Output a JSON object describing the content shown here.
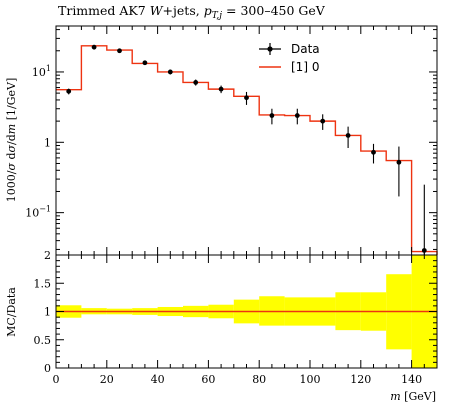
{
  "chart_data": [
    {
      "type": "line",
      "panel": "main",
      "title": "Trimmed AK7 W+jets, p_T,j = 300–450 GeV",
      "title_parts": {
        "prefix": "Trimmed AK7 ",
        "w": "W",
        "mid": "+jets, ",
        "pt": "p",
        "pt_sub": "T,j",
        "suffix": " = 300–450 GeV"
      },
      "ylabel": "1000/σ dσ/dm [1/GeV]",
      "ylabel_parts": {
        "prefix": "1000/",
        "sigma": "σ",
        "mid1": " d",
        "sigma2": "σ",
        "mid2": "/d",
        "m": "m",
        "suffix": " [1/GeV]"
      },
      "y_scale": "log",
      "ylim": [
        0.025,
        45
      ],
      "xlim": [
        0,
        150
      ],
      "y_ticks": [
        {
          "value": 0.1,
          "label": "10",
          "sup": "−1"
        },
        {
          "value": 1,
          "label": "1",
          "sup": ""
        },
        {
          "value": 10,
          "label": "10",
          "sup": "1"
        }
      ],
      "legend": {
        "placement": "top-right",
        "data_label": "Data",
        "mc_label": "[1] 0"
      },
      "series": [
        {
          "name": "Data",
          "kind": "points",
          "x": [
            5,
            15,
            25,
            35,
            45,
            55,
            65,
            75,
            85,
            95,
            105,
            115,
            125,
            135,
            145
          ],
          "y": [
            5.3,
            22.5,
            20.0,
            13.5,
            10.0,
            7.1,
            5.7,
            4.3,
            2.4,
            2.4,
            2.0,
            1.25,
            0.72,
            0.52,
            0.029
          ],
          "y_low": [
            4.8,
            21.5,
            19.0,
            12.7,
            9.2,
            6.4,
            5.0,
            3.4,
            1.8,
            1.8,
            1.5,
            0.83,
            0.5,
            0.17,
            0.003
          ],
          "y_high": [
            5.8,
            23.5,
            21.0,
            14.3,
            10.8,
            7.8,
            6.4,
            5.2,
            3.0,
            3.0,
            2.5,
            1.67,
            0.95,
            0.87,
            0.25
          ]
        },
        {
          "name": "[1] 0",
          "kind": "histogram",
          "bin_edges": [
            0,
            10,
            20,
            30,
            40,
            50,
            60,
            70,
            80,
            90,
            100,
            110,
            120,
            130,
            140,
            150
          ],
          "values": [
            5.6,
            23.5,
            20.5,
            13.2,
            10.0,
            7.1,
            5.7,
            4.5,
            2.45,
            2.4,
            2.0,
            1.25,
            0.75,
            0.55,
            0.028
          ]
        }
      ]
    },
    {
      "type": "area",
      "panel": "ratio",
      "ylabel": "MC/Data",
      "xlabel": "m [GeV]",
      "xlabel_parts": {
        "m": "m",
        "suffix": " [GeV]"
      },
      "xlim": [
        0,
        150
      ],
      "ylim": [
        0,
        2
      ],
      "x_ticks": [
        0,
        20,
        40,
        60,
        80,
        100,
        120,
        140
      ],
      "y_ticks": [
        {
          "value": 0,
          "label": "0"
        },
        {
          "value": 0.5,
          "label": "0.5"
        },
        {
          "value": 1,
          "label": "1"
        },
        {
          "value": 1.5,
          "label": "1.5"
        },
        {
          "value": 2,
          "label": "2"
        }
      ],
      "band": {
        "bin_edges": [
          0,
          10,
          20,
          30,
          40,
          50,
          60,
          70,
          80,
          90,
          100,
          110,
          120,
          130,
          140,
          150
        ],
        "low": [
          0.89,
          0.95,
          0.95,
          0.94,
          0.92,
          0.9,
          0.88,
          0.79,
          0.75,
          0.75,
          0.75,
          0.67,
          0.66,
          0.33,
          0.0
        ],
        "high": [
          1.11,
          1.06,
          1.05,
          1.06,
          1.08,
          1.1,
          1.12,
          1.21,
          1.27,
          1.25,
          1.25,
          1.34,
          1.34,
          1.66,
          2.0
        ]
      },
      "reference_line": 1,
      "colors": {
        "band": "#ffff00",
        "line": "#ee3311"
      }
    }
  ],
  "colors": {
    "mc_line": "#ee3311",
    "data": "#000000",
    "band": "#ffff00"
  }
}
